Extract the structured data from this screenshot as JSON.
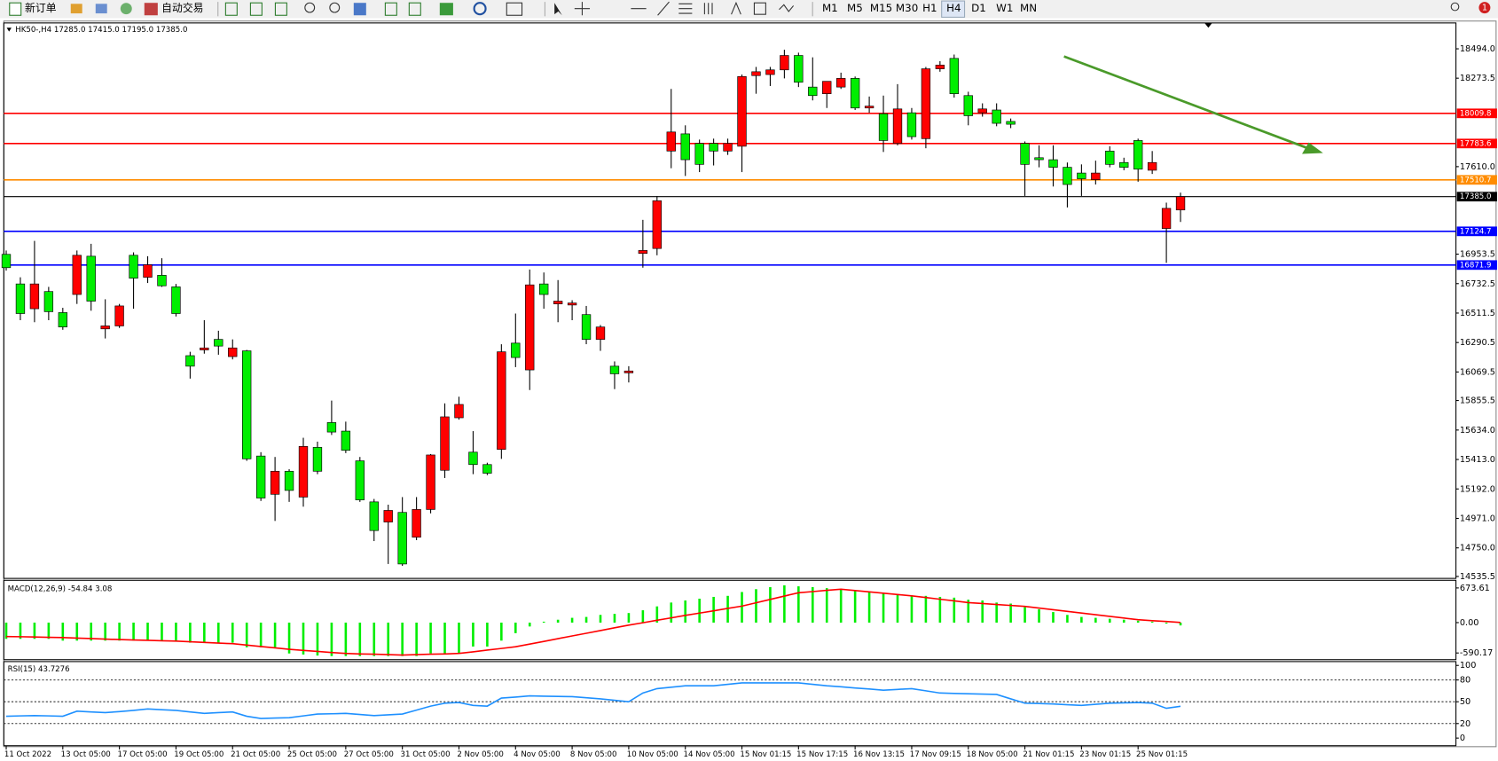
{
  "toolbar": {
    "new_order": "新订单",
    "auto_trading": "自动交易",
    "timeframes": [
      "M1",
      "M5",
      "M15",
      "M30",
      "H1",
      "H4",
      "D1",
      "W1",
      "MN"
    ],
    "notification_count": "1"
  },
  "chart_data": [
    {
      "type": "candlestick",
      "title": "HK50-,H4  17285.0 17415.0 17195.0 17385.0",
      "categories": [
        "11 Oct 2022",
        null,
        null,
        null,
        "13 Oct 05:00",
        null,
        null,
        null,
        "17 Oct 05:00",
        null,
        null,
        null,
        "19 Oct 05:00",
        null,
        null,
        null,
        "21 Oct 05:00",
        null,
        null,
        null,
        "25 Oct 05:00",
        null,
        null,
        null,
        "27 Oct 05:00",
        null,
        null,
        null,
        "31 Oct 05:00",
        null,
        null,
        null,
        "2 Nov 05:00",
        null,
        null,
        null,
        "4 Nov 05:00",
        null,
        null,
        null,
        "8 Nov 05:00",
        null,
        null,
        null,
        "10 Nov 05:00",
        null,
        null,
        null,
        "14 Nov 05:00",
        null,
        null,
        null,
        "15 Nov 01:15",
        null,
        null,
        null,
        "15 Nov 17:15",
        null,
        null,
        null,
        "16 Nov 13:15",
        null,
        null,
        null,
        "17 Nov 09:15",
        null,
        null,
        null,
        "18 Nov 05:00",
        null,
        null,
        null,
        "21 Nov 01:15",
        null,
        null,
        null,
        "23 Nov 01:15",
        null,
        null,
        null,
        "25 Nov 01:15",
        null,
        null,
        null
      ],
      "open": [
        16952,
        16730,
        16544,
        16673,
        16515,
        16651,
        16938,
        16393,
        16415,
        16945,
        16780,
        16795,
        16708,
        16192,
        16235,
        16314,
        16185,
        16228,
        15439,
        15152,
        15325,
        15131,
        15504,
        15690,
        15626,
        15403,
        15095,
        14944,
        15016,
        14830,
        15038,
        15332,
        15726,
        15468,
        15375,
        15489,
        16286,
        16085,
        16730,
        16580,
        16572,
        16500,
        16314,
        16113,
        16063,
        16959,
        16996,
        17727,
        17856,
        17784,
        17784,
        17727,
        17763,
        18293,
        18301,
        18336,
        18444,
        18207,
        18157,
        18207,
        18272,
        18050,
        18007,
        17784,
        18014,
        17820,
        18344,
        18422,
        18143,
        18014,
        18035,
        17949,
        17784,
        17677,
        17662,
        17605,
        17562,
        17512,
        17727,
        17641,
        17806,
        17583,
        17146,
        17285
      ],
      "high": [
        16981,
        16780,
        17053,
        16708,
        16551,
        16981,
        17031,
        16615,
        16580,
        16967,
        16938,
        16923,
        16730,
        16221,
        16458,
        16379,
        16314,
        16235,
        15468,
        15432,
        15340,
        15576,
        15547,
        15855,
        15697,
        15432,
        15117,
        15074,
        15131,
        15131,
        15454,
        15834,
        15884,
        15626,
        15389,
        16278,
        16508,
        16838,
        16816,
        16759,
        16608,
        16565,
        16422,
        16149,
        16113,
        17211,
        17390,
        18193,
        17920,
        17813,
        17820,
        17820,
        18301,
        18358,
        18358,
        18487,
        18465,
        18430,
        18250,
        18315,
        18286,
        18136,
        18143,
        18229,
        18050,
        18358,
        18401,
        18451,
        18172,
        18085,
        18085,
        17971,
        17799,
        17770,
        17770,
        17641,
        17627,
        17655,
        17763,
        17677,
        17820,
        17727,
        17340,
        17415
      ],
      "low": [
        16830,
        16458,
        16443,
        16458,
        16386,
        16580,
        16529,
        16321,
        16400,
        16544,
        16737,
        16708,
        16486,
        16020,
        16207,
        16199,
        16164,
        15403,
        15102,
        14952,
        15095,
        15059,
        15303,
        15597,
        15461,
        15095,
        14801,
        14629,
        14615,
        14808,
        15009,
        15274,
        15712,
        15303,
        15296,
        15418,
        16106,
        15934,
        16544,
        16443,
        16458,
        16278,
        16228,
        15941,
        15991,
        16852,
        16945,
        17598,
        17540,
        17569,
        17619,
        17698,
        17569,
        18157,
        18215,
        18272,
        18207,
        18107,
        18050,
        18193,
        18035,
        18014,
        17720,
        17770,
        17813,
        17748,
        18322,
        18128,
        17920,
        17985,
        17913,
        17899,
        17390,
        17605,
        17461,
        17304,
        17390,
        17476,
        17605,
        17583,
        17497,
        17555,
        16888,
        17195
      ],
      "close": [
        16852,
        16508,
        16730,
        16522,
        16407,
        16945,
        16601,
        16415,
        16565,
        16773,
        16874,
        16716,
        16508,
        16113,
        16250,
        16264,
        16250,
        15418,
        15124,
        15325,
        15181,
        15511,
        15325,
        15619,
        15482,
        15110,
        14880,
        15031,
        14629,
        15038,
        15447,
        15733,
        15826,
        15375,
        15310,
        16221,
        16178,
        16723,
        16651,
        16601,
        16587,
        16314,
        16407,
        16056,
        16077,
        16981,
        17354,
        17870,
        17662,
        17627,
        17727,
        17784,
        18286,
        18322,
        18336,
        18444,
        18243,
        18143,
        18250,
        18272,
        18050,
        18064,
        17806,
        18043,
        17835,
        18344,
        18372,
        18157,
        17992,
        18043,
        17935,
        17928,
        17627,
        17662,
        17605,
        17476,
        17519,
        17562,
        17627,
        17605,
        17591,
        17641,
        17297,
        17385
      ],
      "up_color": "#ff0000",
      "down_color": "#00ee00",
      "ylim": [
        14521,
        18688
      ],
      "yticks": [
        {
          "value": 18494,
          "label": "18494.0"
        },
        18273.5,
        {
          "value": 17610,
          "label": "17610.0"
        },
        16953.5,
        16732.5,
        16511.5,
        16290.5,
        16069.5,
        15855.5,
        {
          "value": 15634,
          "label": "15634.0"
        },
        {
          "value": 15413,
          "label": "15413.0"
        },
        {
          "value": 15192,
          "label": "15192.0"
        },
        {
          "value": 14971,
          "label": "14971.0"
        },
        {
          "value": 14750,
          "label": "14750.0"
        },
        14535.5
      ],
      "price_lines": [
        {
          "value": 18009.8,
          "color": "#ff0000"
        },
        {
          "value": 17783.6,
          "color": "#ff0000"
        },
        {
          "value": 17510.7,
          "color": "#ff8c00"
        },
        {
          "value": 17385,
          "label": "17385.0",
          "color": "#000000"
        },
        {
          "value": 17124.7,
          "color": "#0000ff"
        },
        {
          "value": 16871.9,
          "color": "#0000ff"
        }
      ]
    },
    {
      "type": "macd",
      "title": "MACD(12,26,9) -54.84 3.08",
      "series": [
        {
          "kind": "bar",
          "color": "#00ee00",
          "values": [
            -316,
            -316,
            -316,
            -316,
            -350,
            -350,
            -350,
            -350,
            -350,
            -350,
            -350,
            -350,
            -350,
            -390,
            -390,
            -390,
            -390,
            -480,
            -480,
            -480,
            -600,
            -620,
            -640,
            -650,
            -650,
            -650,
            -650,
            -650,
            -650,
            -650,
            -600,
            -600,
            -600,
            -465,
            -465,
            -350,
            -205,
            -75,
            18,
            56,
            93,
            110,
            150,
            170,
            186,
            240,
            315,
            390,
            430,
            465,
            500,
            520,
            595,
            650,
            690,
            725,
            705,
            690,
            670,
            650,
            615,
            595,
            560,
            540,
            520,
            520,
            500,
            485,
            445,
            430,
            390,
            370,
            300,
            260,
            205,
            150,
            110,
            93,
            75,
            56,
            37,
            18,
            -19,
            -54.84
          ]
        },
        {
          "kind": "line",
          "color": "#ff0000",
          "values": [
            -270,
            -275,
            -280,
            -285,
            -290,
            -300,
            -310,
            -320,
            -330,
            -338,
            -345,
            -352,
            -360,
            -372,
            -385,
            -398,
            -410,
            -438,
            -465,
            -492,
            -520,
            -540,
            -560,
            -580,
            -600,
            -608,
            -615,
            -622,
            -630,
            -622,
            -615,
            -608,
            -600,
            -568,
            -535,
            -502,
            -470,
            -418,
            -365,
            -312,
            -260,
            -208,
            -155,
            -102,
            -50,
            -2,
            45,
            92,
            140,
            185,
            230,
            275,
            320,
            385,
            450,
            515,
            580,
            603,
            627,
            650,
            624,
            598,
            572,
            546,
            520,
            488,
            455,
            422,
            390,
            371,
            352,
            334,
            315,
            283,
            250,
            218,
            186,
            154,
            121,
            88,
            56,
            38,
            21,
            3.08
          ]
        }
      ],
      "ylim": [
        -720,
        822
      ],
      "yticks": [
        673.61,
        {
          "value": 0,
          "label": "0.00"
        },
        -590.17
      ]
    },
    {
      "type": "rsi",
      "title": "RSI(15) 43.7276",
      "series": [
        {
          "kind": "line",
          "color": "#1e90ff",
          "values": [
            30,
            30.5,
            31,
            30.5,
            30,
            37,
            36,
            35,
            36.5,
            38,
            40,
            39,
            38,
            36,
            34,
            35,
            36,
            30,
            27,
            27.5,
            28,
            30.5,
            33,
            33.5,
            34,
            32.5,
            31,
            32,
            33,
            38.5,
            44,
            48,
            49,
            45,
            44,
            55,
            56.5,
            58,
            57.7,
            57.3,
            57,
            55.5,
            54,
            52,
            50,
            62,
            68,
            70,
            72,
            72,
            72,
            74,
            76,
            76,
            76,
            76,
            76,
            74,
            72,
            70.5,
            69,
            67.5,
            66,
            67,
            68,
            65,
            62,
            61.5,
            61,
            60.5,
            60,
            54,
            48,
            47.5,
            47,
            46,
            45,
            46.5,
            48,
            48.5,
            49,
            48,
            41,
            43.7276
          ]
        }
      ],
      "ylim": [
        -10.5,
        105.3
      ],
      "yticks": [
        100,
        80,
        50,
        20,
        0
      ],
      "levels": [
        80,
        50,
        20
      ]
    }
  ]
}
